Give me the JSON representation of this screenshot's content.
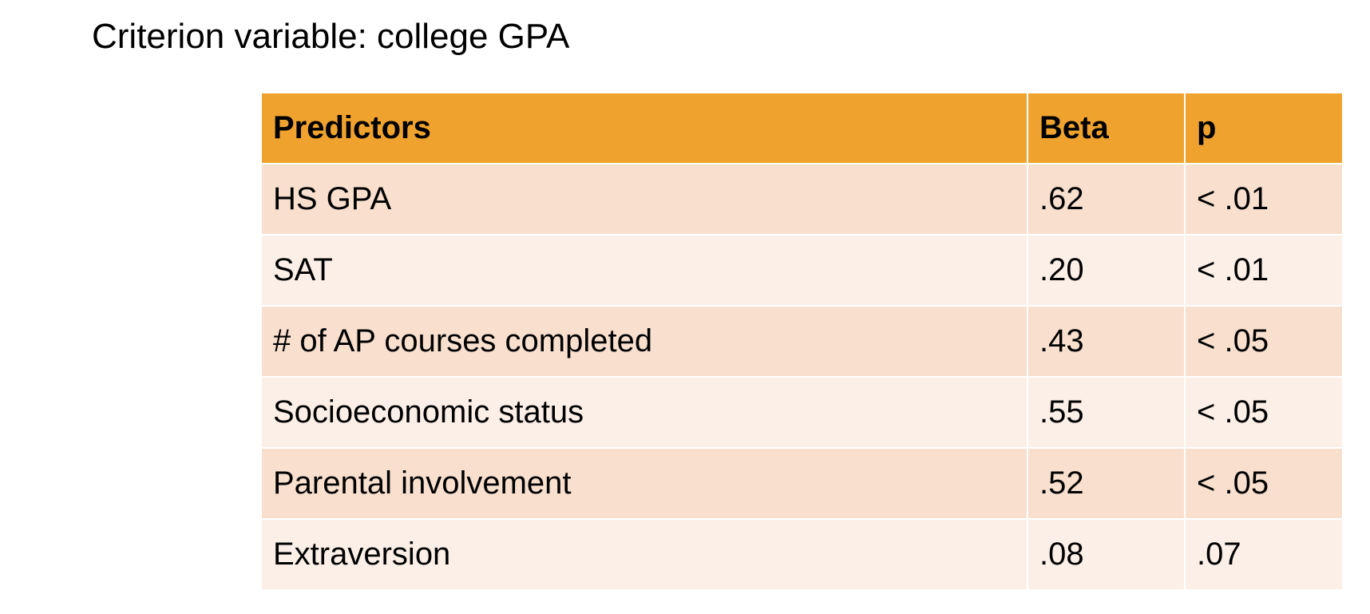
{
  "title": "Criterion variable: college GPA",
  "table": {
    "headers": [
      "Predictors",
      "Beta",
      "p"
    ],
    "rows": [
      [
        "HS GPA",
        ".62",
        "< .01"
      ],
      [
        "SAT",
        ".20",
        "< .01"
      ],
      [
        "# of AP courses completed",
        ".43",
        "< .05"
      ],
      [
        "Socioeconomic status",
        ".55",
        "< .05"
      ],
      [
        "Parental involvement",
        ".52",
        "< .05"
      ],
      [
        "Extraversion",
        ".08",
        ".07"
      ]
    ]
  },
  "colors": {
    "header": "#EFA22E",
    "row_dark": "#F8DFCE",
    "row_light": "#FCEFE8"
  }
}
